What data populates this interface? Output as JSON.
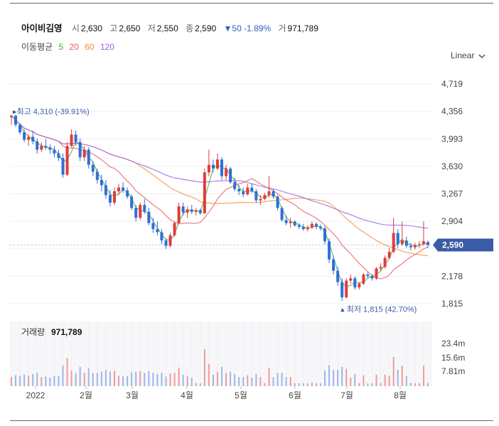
{
  "stock": {
    "name": "아이비김영",
    "open_label": "시",
    "open": "2,630",
    "high_label": "고",
    "high": "2,650",
    "low_label": "저",
    "low": "2,550",
    "close_label": "종",
    "close": "2,590",
    "change": "▼50 -1.89%",
    "volume_label": "거",
    "volume": "971,789"
  },
  "moving_avg": {
    "label": "이동평균",
    "periods": [
      {
        "text": "5",
        "color": "#3fae3f"
      },
      {
        "text": "20",
        "color": "#e8585a"
      },
      {
        "text": "60",
        "color": "#f08a3c"
      },
      {
        "text": "120",
        "color": "#9b5de5"
      }
    ]
  },
  "scale_button": {
    "label": "Linear",
    "icon": "chevron-down-icon"
  },
  "colors": {
    "up": "#e33b3b",
    "down": "#2f6fd6",
    "price_tag": "#3a5ba8"
  },
  "chart_data": {
    "type": "candlestick",
    "price_axis": {
      "ticks": [
        4719,
        4356,
        3993,
        3630,
        3267,
        2904,
        2541,
        2178,
        1815
      ],
      "tick_labels": [
        "4,719",
        "4,356",
        "3,993",
        "3,630",
        "3,267",
        "2,904",
        "",
        "2,178",
        "1,815"
      ]
    },
    "current_price_label": "2,590",
    "current_price": 2590,
    "high_annotation": "최고 4,310 (-39.91%)",
    "low_annotation": "최저 1,815 (42.70%)",
    "volume_panel": {
      "label": "거래량",
      "value": "971,789",
      "ticks": [
        "23.4m",
        "15.6m",
        "7.81m"
      ]
    },
    "x_labels": [
      "2022",
      "2월",
      "3월",
      "4월",
      "5월",
      "6월",
      "7월",
      "8월"
    ],
    "candles": [
      [
        4280,
        4310,
        4180,
        4300
      ],
      [
        4300,
        4310,
        4150,
        4180
      ],
      [
        4180,
        4200,
        4050,
        4080
      ],
      [
        4080,
        4120,
        3950,
        3980
      ],
      [
        3980,
        4050,
        3900,
        4020
      ],
      [
        4020,
        4100,
        3920,
        3960
      ],
      [
        3960,
        4000,
        3800,
        3850
      ],
      [
        3850,
        3950,
        3820,
        3900
      ],
      [
        3900,
        3990,
        3850,
        3880
      ],
      [
        3880,
        3920,
        3800,
        3850
      ],
      [
        3850,
        3900,
        3750,
        3800
      ],
      [
        3800,
        3850,
        3700,
        3740
      ],
      [
        3740,
        3800,
        3480,
        3520
      ],
      [
        3520,
        3950,
        3500,
        3900
      ],
      [
        3900,
        4120,
        3880,
        4050
      ],
      [
        4050,
        4100,
        3900,
        3950
      ],
      [
        3950,
        4000,
        3700,
        3750
      ],
      [
        3750,
        3900,
        3700,
        3850
      ],
      [
        3850,
        3880,
        3600,
        3650
      ],
      [
        3650,
        3700,
        3500,
        3560
      ],
      [
        3560,
        3600,
        3400,
        3450
      ],
      [
        3450,
        3520,
        3300,
        3380
      ],
      [
        3380,
        3450,
        3200,
        3250
      ],
      [
        3250,
        3320,
        3100,
        3150
      ],
      [
        3150,
        3350,
        3120,
        3300
      ],
      [
        3300,
        3400,
        3250,
        3350
      ],
      [
        3350,
        3420,
        3280,
        3310
      ],
      [
        3310,
        3350,
        3200,
        3230
      ],
      [
        3230,
        3260,
        3050,
        3080
      ],
      [
        3080,
        3120,
        2900,
        2950
      ],
      [
        2950,
        3150,
        2920,
        3120
      ],
      [
        3120,
        3200,
        3000,
        3030
      ],
      [
        3030,
        3080,
        2850,
        2880
      ],
      [
        2880,
        2950,
        2750,
        2800
      ],
      [
        2800,
        2900,
        2720,
        2760
      ],
      [
        2760,
        2800,
        2600,
        2650
      ],
      [
        2650,
        2680,
        2540,
        2580
      ],
      [
        2580,
        2750,
        2560,
        2720
      ],
      [
        2720,
        2900,
        2700,
        2880
      ],
      [
        2880,
        3150,
        2860,
        3100
      ],
      [
        3100,
        3150,
        2980,
        3020
      ],
      [
        3020,
        3100,
        2950,
        3060
      ],
      [
        3060,
        3120,
        3000,
        3030
      ],
      [
        3030,
        3080,
        2980,
        3050
      ],
      [
        3050,
        3070,
        2990,
        3010
      ],
      [
        3010,
        3600,
        3000,
        3550
      ],
      [
        3550,
        3850,
        3500,
        3650
      ],
      [
        3650,
        3720,
        3550,
        3600
      ],
      [
        3600,
        3800,
        3580,
        3720
      ],
      [
        3720,
        3750,
        3450,
        3500
      ],
      [
        3500,
        3650,
        3450,
        3600
      ],
      [
        3600,
        3620,
        3400,
        3420
      ],
      [
        3420,
        3480,
        3300,
        3330
      ],
      [
        3330,
        3380,
        3250,
        3300
      ],
      [
        3300,
        3350,
        3220,
        3260
      ],
      [
        3260,
        3400,
        3240,
        3350
      ],
      [
        3350,
        3400,
        3280,
        3300
      ],
      [
        3300,
        3330,
        3150,
        3180
      ],
      [
        3180,
        3250,
        3120,
        3200
      ],
      [
        3200,
        3280,
        3180,
        3250
      ],
      [
        3250,
        3500,
        3220,
        3300
      ],
      [
        3300,
        3330,
        3200,
        3230
      ],
      [
        3230,
        3250,
        3050,
        3080
      ],
      [
        3080,
        3100,
        2900,
        2920
      ],
      [
        2920,
        2980,
        2850,
        2880
      ],
      [
        2880,
        2950,
        2820,
        2900
      ],
      [
        2900,
        2920,
        2830,
        2850
      ],
      [
        2850,
        2880,
        2800,
        2830
      ],
      [
        2830,
        2870,
        2780,
        2800
      ],
      [
        2800,
        2850,
        2770,
        2820
      ],
      [
        2820,
        2900,
        2800,
        2870
      ],
      [
        2870,
        2890,
        2800,
        2830
      ],
      [
        2830,
        2860,
        2780,
        2810
      ],
      [
        2810,
        2840,
        2600,
        2640
      ],
      [
        2640,
        2680,
        2350,
        2400
      ],
      [
        2400,
        2450,
        2200,
        2250
      ],
      [
        2250,
        2300,
        2050,
        2100
      ],
      [
        2100,
        2150,
        1850,
        1900
      ],
      [
        1900,
        2150,
        1880,
        2120
      ],
      [
        2120,
        2200,
        2080,
        2150
      ],
      [
        2150,
        2180,
        2000,
        2030
      ],
      [
        2030,
        2100,
        2000,
        2080
      ],
      [
        2080,
        2220,
        2060,
        2200
      ],
      [
        2200,
        2230,
        2150,
        2180
      ],
      [
        2180,
        2210,
        2120,
        2150
      ],
      [
        2150,
        2300,
        2130,
        2280
      ],
      [
        2280,
        2350,
        2250,
        2300
      ],
      [
        2300,
        2450,
        2280,
        2420
      ],
      [
        2420,
        2550,
        2400,
        2500
      ],
      [
        2500,
        2950,
        2480,
        2750
      ],
      [
        2750,
        2800,
        2550,
        2600
      ],
      [
        2600,
        2900,
        2580,
        2650
      ],
      [
        2650,
        2700,
        2550,
        2580
      ],
      [
        2580,
        2620,
        2520,
        2560
      ],
      [
        2560,
        2620,
        2530,
        2590
      ],
      [
        2590,
        2640,
        2550,
        2600
      ],
      [
        2600,
        2900,
        2580,
        2640
      ],
      [
        2630,
        2650,
        2550,
        2590
      ]
    ]
  }
}
